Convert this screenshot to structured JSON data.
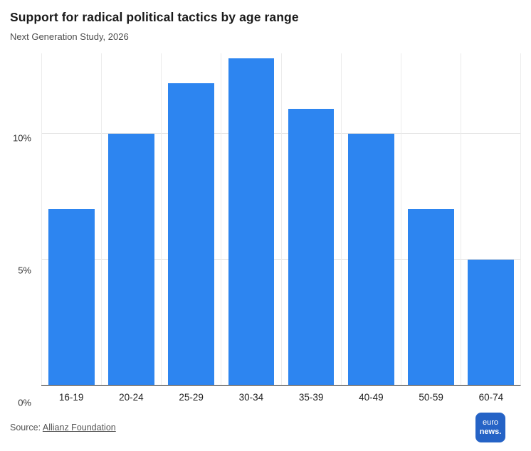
{
  "header": {
    "title": "Support for radical political tactics by age range",
    "subtitle": "Next Generation Study, 2026"
  },
  "chart_data": {
    "type": "bar",
    "title": "Support for radical political tactics by age range",
    "subtitle": "Next Generation Study, 2026",
    "categories": [
      "16-19",
      "20-24",
      "25-29",
      "30-34",
      "35-39",
      "40-49",
      "50-59",
      "60-74"
    ],
    "values": [
      7,
      10,
      12,
      13,
      11,
      10,
      7,
      5
    ],
    "xlabel": "",
    "ylabel": "",
    "ylim": [
      0,
      13.2
    ],
    "yticks": [
      0,
      5,
      10
    ],
    "ytick_labels": [
      "0%",
      "5%",
      "10%"
    ],
    "grid": true,
    "legend": "none",
    "bar_color": "#2d85f0"
  },
  "footer": {
    "source_prefix": "Source:",
    "source_link": "Allianz Foundation",
    "logo": {
      "line1": "euro",
      "line2": "news.",
      "color": "#2563c6"
    }
  },
  "colors": {
    "bar": "#2d85f0",
    "axis_line": "#262626",
    "grid_line": "#e2e2e2",
    "title_text": "#1a1a1a",
    "muted_text": "#4d4d4d"
  }
}
